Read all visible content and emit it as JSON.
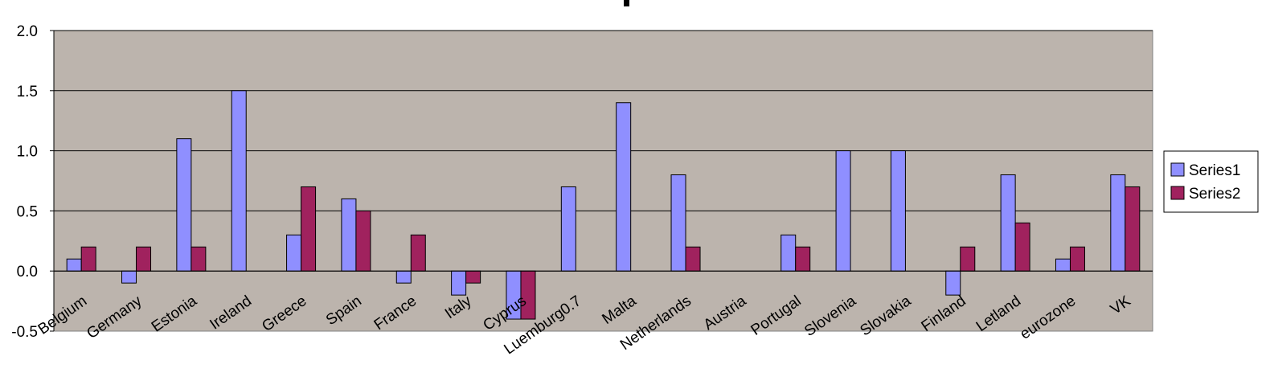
{
  "chart_data": {
    "type": "bar",
    "categories": [
      "Belgium",
      "Germany",
      "Estonia",
      "Ireland",
      "Greece",
      "Spain",
      "France",
      "Italy",
      "Cyprus",
      "Luemburg0.7",
      "Malta",
      "Netherlands",
      "Austria",
      "Portugal",
      "Slovenia",
      "Slovakia",
      "Finland",
      "Letland",
      "eurozone",
      "VK"
    ],
    "series": [
      {
        "name": "Series1",
        "color": "#8f8fff",
        "values": [
          0.1,
          -0.1,
          1.1,
          1.5,
          0.3,
          0.6,
          -0.1,
          -0.2,
          -0.4,
          0.7,
          1.4,
          0.8,
          null,
          0.3,
          1.0,
          1.0,
          -0.2,
          0.8,
          0.1,
          0.8
        ]
      },
      {
        "name": "Series2",
        "color": "#a0225e",
        "values": [
          0.2,
          0.2,
          0.2,
          null,
          0.7,
          0.5,
          0.3,
          -0.1,
          -0.4,
          null,
          null,
          0.2,
          null,
          0.2,
          null,
          null,
          0.2,
          0.4,
          0.2,
          0.7
        ]
      }
    ],
    "ylim": [
      -0.5,
      2.0
    ],
    "yticks": [
      "2.0",
      "1.5",
      "1.0",
      "0.5",
      "0.0",
      "-0.5"
    ],
    "ytick_values": [
      2.0,
      1.5,
      1.0,
      0.5,
      0.0,
      -0.5
    ],
    "grid": true,
    "legend": "right",
    "plot_background": "#bcb4ad",
    "title": "",
    "xlabel": "",
    "ylabel": ""
  }
}
